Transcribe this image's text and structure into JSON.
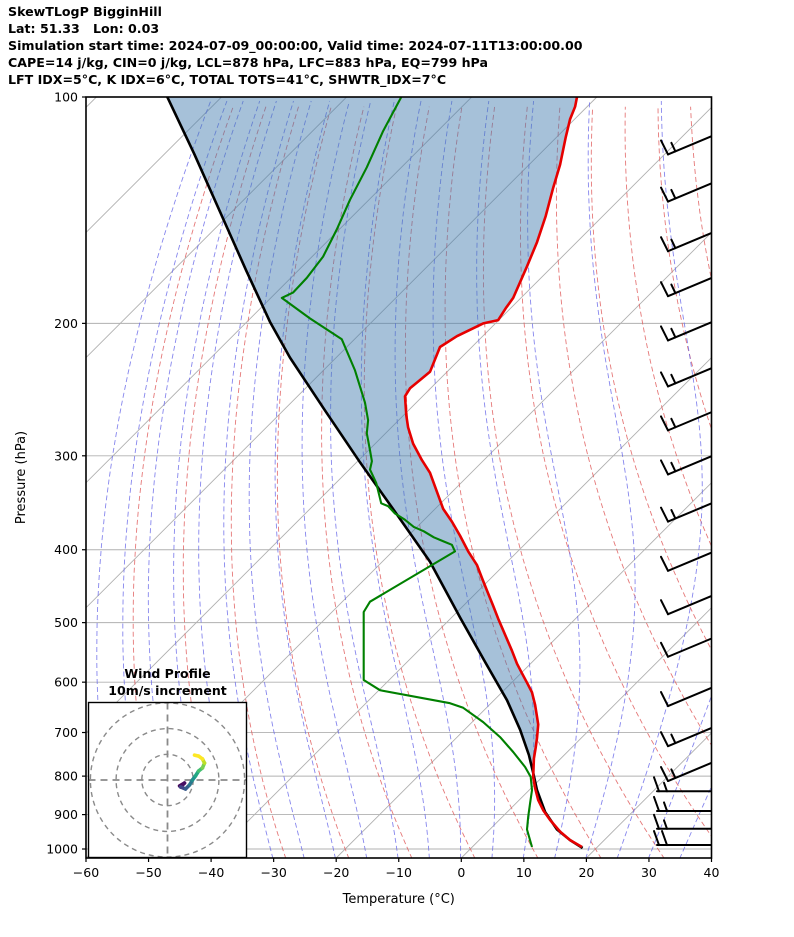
{
  "header": {
    "title": "SkewTLogP BigginHill",
    "location": "Lat: 51.33   Lon: 0.03",
    "time_line": "Simulation start time: 2024-07-09_00:00:00, Valid time: 2024-07-11T13:00:00.00",
    "cape_line": "CAPE=14 j/kg, CIN=0 j/kg, LCL=878 hPa, LFC=883 hPa, EQ=799 hPa",
    "index_line": "LFT IDX=5°C, K IDX=6°C, TOTAL TOTS=41°C, SHWTR_IDX=7°C"
  },
  "axes": {
    "x_label": "Temperature (°C)",
    "y_label": "Pressure (hPa)",
    "x_ticks": [
      -60,
      -50,
      -40,
      -30,
      -20,
      -10,
      0,
      10,
      20,
      30,
      40
    ],
    "y_ticks": [
      100,
      200,
      300,
      400,
      500,
      600,
      700,
      800,
      900,
      1000
    ],
    "x_range": [
      -60,
      40
    ],
    "p_top": 100,
    "p_bottom": 1030
  },
  "inset": {
    "title_line1": "Wind Profile",
    "title_line2": "10m/s increment",
    "ring_speeds_ms": [
      10,
      20,
      30
    ]
  },
  "colors": {
    "temperature": "#e60000",
    "dewpoint": "#008000",
    "parcel": "#000000",
    "cape_fill": "rgba(70,125,175,0.48)",
    "isotherm": "#b0b0b0",
    "pressure_grid": "#b0b0b0",
    "dry_adiabat": "#e06060",
    "moist_adiabat": "#6868e8",
    "barb": "#000000",
    "hodo_ring": "#8a8a8a"
  },
  "chart_data": {
    "type": "skewt-logp",
    "note": "temperatures are x-axis readings (unskewed vertical projection onto the temperature axis); pressures in hPa",
    "temperature_profile": [
      [
        100,
        18.5
      ],
      [
        103,
        18.2
      ],
      [
        107,
        17.4
      ],
      [
        113,
        16.7
      ],
      [
        123,
        15.8
      ],
      [
        132,
        14.7
      ],
      [
        144,
        13.5
      ],
      [
        156,
        12.1
      ],
      [
        168,
        10.5
      ],
      [
        185,
        8.3
      ],
      [
        191,
        7.1
      ],
      [
        198,
        5.9
      ],
      [
        200,
        3.5
      ],
      [
        208,
        -0.7
      ],
      [
        215,
        -3.4
      ],
      [
        232,
        -5.0
      ],
      [
        244,
        -8.2
      ],
      [
        250,
        -9.0
      ],
      [
        265,
        -8.8
      ],
      [
        275,
        -8.5
      ],
      [
        289,
        -7.7
      ],
      [
        304,
        -6.3
      ],
      [
        316,
        -5.0
      ],
      [
        353,
        -2.9
      ],
      [
        367,
        -1.5
      ],
      [
        383,
        -0.2
      ],
      [
        402,
        1.1
      ],
      [
        419,
        2.5
      ],
      [
        436,
        3.3
      ],
      [
        453,
        4.1
      ],
      [
        475,
        5.1
      ],
      [
        494,
        5.9
      ],
      [
        519,
        7.0
      ],
      [
        545,
        8.1
      ],
      [
        567,
        8.9
      ],
      [
        584,
        9.7
      ],
      [
        601,
        10.5
      ],
      [
        619,
        11.3
      ],
      [
        643,
        11.8
      ],
      [
        667,
        12.1
      ],
      [
        683,
        12.3
      ],
      [
        712,
        12.1
      ],
      [
        733,
        11.9
      ],
      [
        758,
        11.6
      ],
      [
        802,
        11.5
      ],
      [
        830,
        11.8
      ],
      [
        861,
        12.3
      ],
      [
        888,
        13.1
      ],
      [
        915,
        14.2
      ],
      [
        948,
        15.8
      ],
      [
        973,
        17.4
      ],
      [
        994,
        19.3
      ]
    ],
    "dewpoint_profile": [
      [
        100,
        -9.6
      ],
      [
        111,
        -12.5
      ],
      [
        124,
        -15.1
      ],
      [
        137,
        -17.8
      ],
      [
        150,
        -19.9
      ],
      [
        163,
        -22.1
      ],
      [
        174,
        -24.7
      ],
      [
        182,
        -26.9
      ],
      [
        185,
        -28.7
      ],
      [
        197,
        -24.2
      ],
      [
        210,
        -19.1
      ],
      [
        231,
        -17.0
      ],
      [
        255,
        -15.4
      ],
      [
        269,
        -14.9
      ],
      [
        280,
        -15.1
      ],
      [
        295,
        -14.6
      ],
      [
        305,
        -14.3
      ],
      [
        313,
        -14.6
      ],
      [
        326,
        -13.6
      ],
      [
        347,
        -12.8
      ],
      [
        350,
        -11.7
      ],
      [
        358,
        -10.6
      ],
      [
        365,
        -9.0
      ],
      [
        373,
        -7.6
      ],
      [
        378,
        -6.0
      ],
      [
        385,
        -4.4
      ],
      [
        390,
        -2.8
      ],
      [
        394,
        -1.5
      ],
      [
        402,
        -1.0
      ],
      [
        469,
        -14.6
      ],
      [
        484,
        -15.6
      ],
      [
        552,
        -15.6
      ],
      [
        596,
        -15.6
      ],
      [
        615,
        -13.0
      ],
      [
        640,
        -1.8
      ],
      [
        649,
        0.3
      ],
      [
        678,
        3.5
      ],
      [
        710,
        6.2
      ],
      [
        743,
        8.3
      ],
      [
        778,
        10.2
      ],
      [
        802,
        11.1
      ],
      [
        835,
        11.3
      ],
      [
        869,
        11.0
      ],
      [
        906,
        10.7
      ],
      [
        942,
        10.5
      ],
      [
        994,
        11.3
      ]
    ],
    "parcel_profile": [
      [
        100,
        -47.0
      ],
      [
        119,
        -42.7
      ],
      [
        142,
        -38.6
      ],
      [
        170,
        -34.4
      ],
      [
        199,
        -30.6
      ],
      [
        222,
        -27.4
      ],
      [
        261,
        -21.8
      ],
      [
        306,
        -16.2
      ],
      [
        356,
        -10.6
      ],
      [
        415,
        -5.0
      ],
      [
        492,
        -0.2
      ],
      [
        564,
        3.8
      ],
      [
        634,
        7.3
      ],
      [
        694,
        9.4
      ],
      [
        750,
        10.8
      ],
      [
        792,
        11.5
      ],
      [
        835,
        12.1
      ],
      [
        893,
        13.4
      ],
      [
        942,
        15.3
      ],
      [
        973,
        17.4
      ],
      [
        997,
        19.4
      ]
    ],
    "fill_between": {
      "left": "parcel_profile",
      "right": "temperature_profile",
      "p_from": 100,
      "p_to": 800
    },
    "wind_barbs": [
      {
        "p": 116,
        "full": 1,
        "half": 1,
        "horizontal": false
      },
      {
        "p": 134,
        "full": 1,
        "half": 1,
        "horizontal": false
      },
      {
        "p": 156,
        "full": 1,
        "half": 1,
        "horizontal": false
      },
      {
        "p": 179,
        "full": 1,
        "half": 1,
        "horizontal": false
      },
      {
        "p": 205,
        "full": 1,
        "half": 1,
        "horizontal": false
      },
      {
        "p": 236,
        "full": 1,
        "half": 1,
        "horizontal": false
      },
      {
        "p": 270,
        "full": 1,
        "half": 1,
        "horizontal": false
      },
      {
        "p": 309,
        "full": 1,
        "half": 1,
        "horizontal": false
      },
      {
        "p": 357,
        "full": 1,
        "half": 1,
        "horizontal": false
      },
      {
        "p": 415,
        "full": 1,
        "half": 0,
        "horizontal": false
      },
      {
        "p": 474,
        "full": 1,
        "half": 0,
        "horizontal": false
      },
      {
        "p": 540,
        "full": 1,
        "half": 0,
        "horizontal": false
      },
      {
        "p": 628,
        "full": 1,
        "half": 0,
        "horizontal": false
      },
      {
        "p": 710,
        "full": 1,
        "half": 1,
        "horizontal": false
      },
      {
        "p": 790,
        "full": 1,
        "half": 1,
        "horizontal": false
      },
      {
        "p": 838,
        "full": 1,
        "half": 1,
        "horizontal": true
      },
      {
        "p": 890,
        "full": 1,
        "half": 1,
        "horizontal": true
      },
      {
        "p": 940,
        "full": 1,
        "half": 1,
        "horizontal": true
      },
      {
        "p": 988,
        "full": 2,
        "half": 0,
        "horizontal": true
      }
    ],
    "hodograph_trace_uv_ms": [
      [
        4.7,
        -2.3
      ],
      [
        6.6,
        -1.2
      ],
      [
        5.1,
        -2.7
      ],
      [
        7.0,
        -3.5
      ],
      [
        8.6,
        -1.9
      ],
      [
        9.7,
        0.0
      ],
      [
        10.9,
        1.6
      ],
      [
        12.1,
        3.5
      ],
      [
        13.6,
        4.7
      ],
      [
        14.4,
        6.6
      ],
      [
        13.6,
        8.2
      ],
      [
        12.1,
        9.3
      ],
      [
        10.5,
        9.7
      ]
    ],
    "hodograph_colors": [
      "#46085c",
      "#471063",
      "#414487",
      "#355f8d",
      "#2a788e",
      "#21918c",
      "#22a884",
      "#44bf70",
      "#7ad151",
      "#bddf26",
      "#fde725",
      "#fde725"
    ],
    "background": {
      "isotherm_step_c": 20,
      "dry_adiabat_theta_range_c": [
        -50,
        170
      ],
      "dry_adiabat_step_c": 10,
      "moist_adiabat_start_range_c": [
        -55,
        40
      ],
      "moist_adiabat_step_c": 5,
      "pressure_grid_step_hpa": 100
    }
  }
}
